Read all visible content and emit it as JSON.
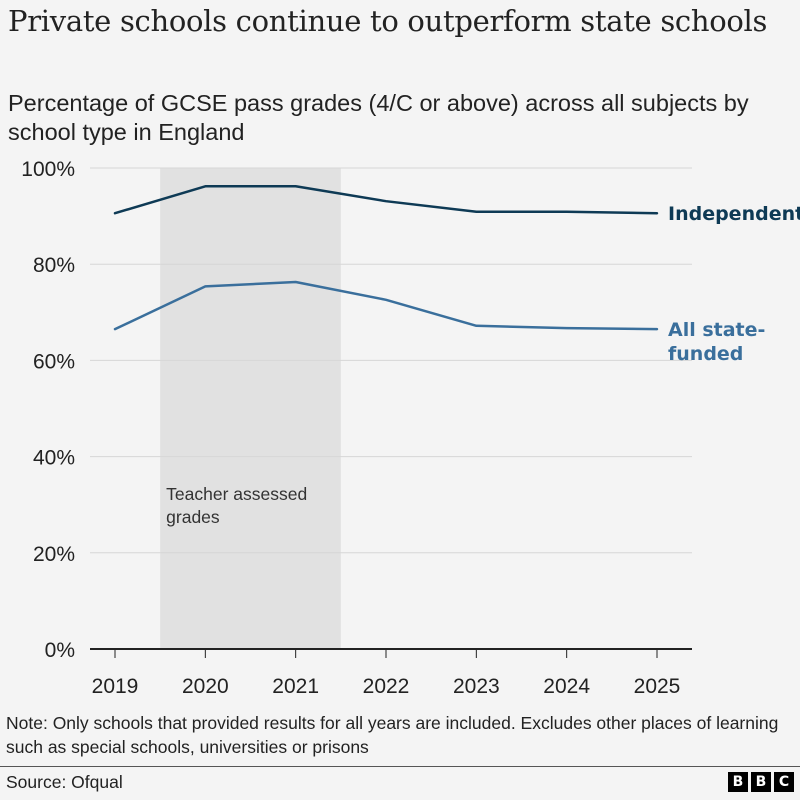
{
  "header": {
    "title": "Private schools continue to outperform state schools",
    "subtitle": "Percentage of GCSE pass grades (4/C or above) across all subjects by school type in England"
  },
  "chart_data": {
    "type": "line",
    "title": "Private schools continue to outperform state schools",
    "subtitle": "Percentage of GCSE pass grades (4/C or above) across all subjects by school type in England",
    "xlabel": "",
    "ylabel": "",
    "x": [
      2019,
      2020,
      2021,
      2022,
      2023,
      2024,
      2025
    ],
    "x_tick_labels": [
      "2019",
      "2020",
      "2021",
      "2022",
      "2023",
      "2024",
      "2025"
    ],
    "ylim": [
      0,
      100
    ],
    "y_ticks": [
      0,
      20,
      40,
      60,
      80,
      100
    ],
    "y_tick_labels": [
      "0%",
      "20%",
      "40%",
      "60%",
      "80%",
      "100%"
    ],
    "grid": true,
    "series": [
      {
        "name": "Independent",
        "label_lines": [
          "Independent"
        ],
        "color": "#0e3a55",
        "values": [
          90.6,
          96.2,
          96.2,
          93.1,
          90.9,
          90.9,
          90.6
        ]
      },
      {
        "name": "All state-funded",
        "label_lines": [
          "All state-",
          "funded"
        ],
        "color": "#3a6f9c",
        "values": [
          66.5,
          75.4,
          76.3,
          72.6,
          67.2,
          66.7,
          66.5
        ]
      }
    ],
    "annotations": [
      {
        "type": "shaded-range",
        "x_range": [
          2019.5,
          2021.5
        ],
        "label_lines": [
          "Teacher assessed",
          "grades"
        ],
        "color": "#e1e1e1"
      }
    ],
    "legend": "direct-labels-right"
  },
  "footer": {
    "note": "Note: Only schools that provided results for all years are included. Excludes other places of learning such as special schools, universities or prisons",
    "source": "Source: Ofqual",
    "logo_letters": [
      "B",
      "B",
      "C"
    ]
  }
}
